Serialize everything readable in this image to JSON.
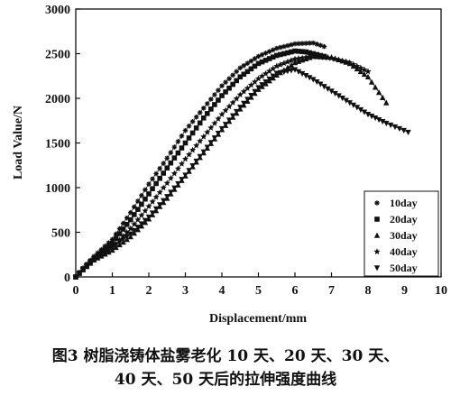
{
  "caption": {
    "line1": "图3  树脂浇铸体盐雾老化 10 天、20 天、30 天、",
    "line2": "40 天、50 天后的拉伸强度曲线"
  },
  "chart_data": {
    "type": "scatter",
    "xlabel": "Displacement/mm",
    "ylabel": "Load Value/N",
    "xlim": [
      0,
      10
    ],
    "ylim": [
      0,
      3000
    ],
    "xticks": [
      "0",
      "1",
      "2",
      "3",
      "4",
      "5",
      "6",
      "7",
      "8",
      "9",
      "10"
    ],
    "yticks": [
      "0",
      "500",
      "1000",
      "1500",
      "2000",
      "2500",
      "3000"
    ],
    "grid": false,
    "legend_position": "bottom-right",
    "series": [
      {
        "name": "10day",
        "marker": "asterisk",
        "x": [
          0,
          0.2,
          0.5,
          1,
          1.5,
          2,
          2.5,
          3,
          3.5,
          4,
          4.5,
          5,
          5.5,
          6,
          6.5,
          6.8
        ],
        "y": [
          0,
          100,
          230,
          420,
          720,
          1040,
          1330,
          1640,
          1890,
          2140,
          2340,
          2470,
          2560,
          2610,
          2620,
          2580
        ]
      },
      {
        "name": "20day",
        "marker": "square",
        "x": [
          0,
          0.2,
          0.5,
          1,
          1.5,
          2,
          2.5,
          3,
          3.5,
          4,
          4.5,
          5,
          5.5,
          6,
          6.3,
          6.8
        ],
        "y": [
          0,
          90,
          210,
          380,
          640,
          930,
          1220,
          1500,
          1780,
          2030,
          2240,
          2390,
          2480,
          2530,
          2520,
          2470
        ]
      },
      {
        "name": "30day",
        "marker": "triangle-up",
        "x": [
          0,
          0.2,
          0.5,
          1,
          1.5,
          2,
          2.5,
          3,
          3.5,
          4,
          4.5,
          5,
          5.5,
          6,
          6.5,
          7,
          7.5,
          8,
          8.5
        ],
        "y": [
          0,
          80,
          190,
          300,
          450,
          650,
          880,
          1130,
          1390,
          1650,
          1880,
          2100,
          2260,
          2400,
          2470,
          2460,
          2390,
          2240,
          1950
        ]
      },
      {
        "name": "40day",
        "marker": "star",
        "x": [
          0,
          0.2,
          0.5,
          1,
          1.5,
          2,
          2.5,
          3,
          3.5,
          4,
          4.5,
          5,
          5.5,
          6,
          6.5,
          7,
          7.5,
          8
        ],
        "y": [
          0,
          90,
          200,
          330,
          540,
          790,
          1050,
          1320,
          1570,
          1820,
          2040,
          2220,
          2360,
          2440,
          2470,
          2450,
          2400,
          2300
        ]
      },
      {
        "name": "50day",
        "marker": "triangle-down",
        "x": [
          0,
          0.2,
          0.5,
          1,
          1.5,
          2,
          2.5,
          3,
          3.5,
          4,
          4.5,
          5,
          5.5,
          6,
          6.5,
          7,
          7.5,
          8,
          8.5,
          9.1
        ],
        "y": [
          0,
          80,
          200,
          330,
          480,
          670,
          900,
          1140,
          1400,
          1660,
          1900,
          2120,
          2280,
          2320,
          2210,
          2080,
          1950,
          1820,
          1720,
          1620
        ]
      }
    ]
  }
}
